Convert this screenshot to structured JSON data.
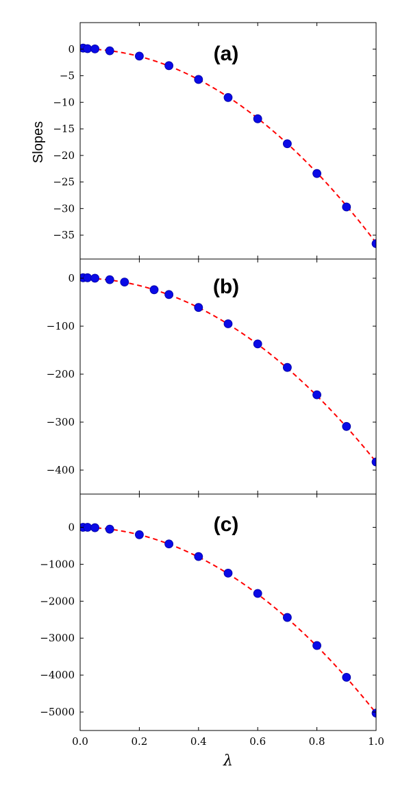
{
  "chart_data": [
    {
      "type": "scatter",
      "panel_label": "(a)",
      "ylabel": "Slopes",
      "xlabel": "",
      "xlim": [
        0.0,
        1.0
      ],
      "ylim": [
        -39.5,
        5
      ],
      "yticks": [
        0,
        -5,
        -10,
        -15,
        -20,
        -25,
        -30,
        -35
      ],
      "ytick_labels": [
        "0",
        "−5",
        "−10",
        "−15",
        "−20",
        "−25",
        "−30",
        "−35"
      ],
      "points": {
        "x": [
          0.01,
          0.025,
          0.05,
          0.1,
          0.2,
          0.3,
          0.4,
          0.5,
          0.6,
          0.7,
          0.8,
          0.9,
          1.0
        ],
        "y": [
          0.2,
          0.1,
          0.05,
          -0.3,
          -1.3,
          -3.1,
          -5.7,
          -9.1,
          -13.1,
          -17.8,
          -23.4,
          -29.7,
          -36.6
        ]
      },
      "fit": {
        "form": "quadratic",
        "a": -36.8,
        "b": 0.3,
        "c": 0.05
      },
      "colors": {
        "points": "#0a0ae6",
        "fit": "#ff0000"
      }
    },
    {
      "type": "scatter",
      "panel_label": "(b)",
      "ylabel": "",
      "xlabel": "",
      "xlim": [
        0.0,
        1.0
      ],
      "ylim": [
        -450,
        40
      ],
      "yticks": [
        0,
        -100,
        -200,
        -300,
        -400
      ],
      "ytick_labels": [
        "0",
        "−100",
        "−200",
        "−300",
        "−400"
      ],
      "points": {
        "x": [
          0.01,
          0.025,
          0.05,
          0.1,
          0.15,
          0.25,
          0.3,
          0.4,
          0.5,
          0.6,
          0.7,
          0.8,
          0.9,
          1.0
        ],
        "y": [
          1,
          1,
          0,
          -3,
          -8,
          -24,
          -34,
          -61,
          -95,
          -137,
          -186,
          -243,
          -309,
          -383
        ]
      },
      "fit": {
        "form": "quadratic",
        "a": -383,
        "b": 0,
        "c": 0
      },
      "colors": {
        "points": "#0a0ae6",
        "fit": "#ff0000"
      }
    },
    {
      "type": "scatter",
      "panel_label": "(c)",
      "ylabel": "",
      "xlabel": "λ",
      "xlim": [
        0.0,
        1.0
      ],
      "ylim": [
        -5500,
        900
      ],
      "yticks": [
        0,
        -1000,
        -2000,
        -3000,
        -4000,
        -5000
      ],
      "ytick_labels": [
        "0",
        "−1000",
        "−2000",
        "−3000",
        "−4000",
        "−5000"
      ],
      "xticks": [
        0.0,
        0.2,
        0.4,
        0.6,
        0.8,
        1.0
      ],
      "xtick_labels": [
        "0.0",
        "0.2",
        "0.4",
        "0.6",
        "0.8",
        "1.0"
      ],
      "points": {
        "x": [
          0.01,
          0.025,
          0.05,
          0.1,
          0.2,
          0.3,
          0.4,
          0.5,
          0.6,
          0.7,
          0.8,
          0.9,
          1.0
        ],
        "y": [
          0,
          0,
          -10,
          -50,
          -200,
          -450,
          -790,
          -1240,
          -1790,
          -2440,
          -3200,
          -4060,
          -5030
        ]
      },
      "fit": {
        "form": "quadratic",
        "a": -5030,
        "b": 0,
        "c": 0
      },
      "colors": {
        "points": "#0a0ae6",
        "fit": "#ff0000"
      }
    }
  ]
}
